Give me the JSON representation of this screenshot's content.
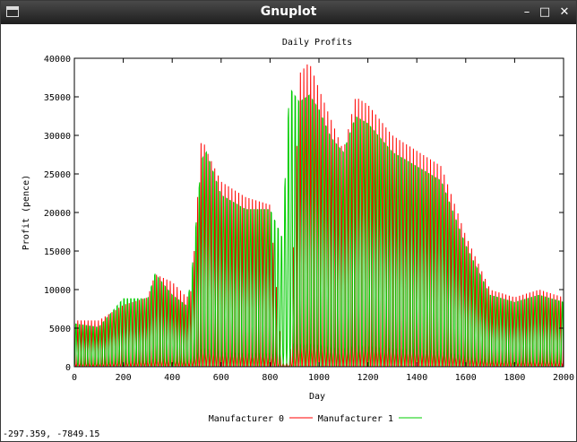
{
  "window": {
    "title": "Gnuplot",
    "minimize_icon": "minimize-icon",
    "maximize_icon": "maximize-icon",
    "close_icon": "close-icon"
  },
  "status_bar": {
    "coordinates": "-297.359, -7849.15"
  },
  "chart_data": {
    "type": "line",
    "title": "Daily Profits",
    "xlabel": "Day",
    "ylabel": "Profit (pence)",
    "xlim": [
      0,
      2000
    ],
    "ylim": [
      0,
      40000
    ],
    "x_ticks": [
      0,
      200,
      400,
      600,
      800,
      1000,
      1200,
      1400,
      1600,
      1800,
      2000
    ],
    "y_ticks": [
      0,
      5000,
      10000,
      15000,
      20000,
      25000,
      30000,
      35000,
      40000
    ],
    "grid": false,
    "legend_position": "bottom-center",
    "series": [
      {
        "name": "Manufacturer 0",
        "color": "#ff0000",
        "envelope_x": [
          0,
          100,
          200,
          300,
          330,
          400,
          460,
          480,
          520,
          540,
          600,
          700,
          800,
          850,
          880,
          920,
          960,
          1000,
          1050,
          1100,
          1150,
          1200,
          1300,
          1400,
          1500,
          1600,
          1700,
          1800,
          1900,
          2000
        ],
        "envelope_y": [
          6000,
          6000,
          8000,
          9000,
          12000,
          11000,
          9000,
          10000,
          30000,
          28000,
          24000,
          22000,
          21000,
          500,
          500,
          38000,
          39500,
          36000,
          32000,
          28000,
          35000,
          34000,
          30000,
          28000,
          26000,
          17000,
          10000,
          9000,
          10000,
          9000
        ],
        "period": 14
      },
      {
        "name": "Manufacturer 1",
        "color": "#00cc00",
        "envelope_x": [
          0,
          100,
          200,
          300,
          330,
          400,
          460,
          480,
          520,
          540,
          600,
          700,
          800,
          850,
          880,
          920,
          960,
          1000,
          1050,
          1100,
          1150,
          1200,
          1300,
          1400,
          1500,
          1600,
          1700,
          1800,
          1900,
          2000
        ],
        "envelope_y": [
          6000,
          5500,
          9500,
          9500,
          13000,
          10000,
          8500,
          13000,
          29000,
          30000,
          24000,
          22000,
          22000,
          18000,
          39000,
          37000,
          38000,
          36000,
          32000,
          30000,
          35000,
          34000,
          30000,
          28000,
          26000,
          17000,
          10000,
          9000,
          10000,
          9000
        ],
        "period": 14
      }
    ]
  }
}
